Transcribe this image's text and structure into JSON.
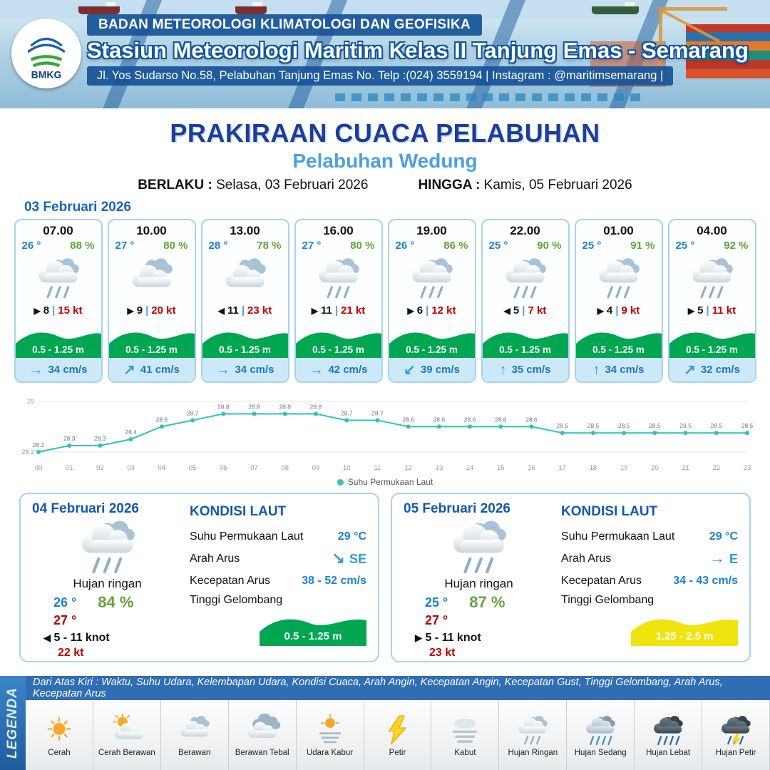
{
  "header": {
    "logo": "BMKG",
    "org_line": "BADAN METEOROLOGI KLIMATOLOGI DAN GEOFISIKA",
    "station_line": "Stasiun Meteorologi Maritim Kelas II Tanjung Emas - Semarang",
    "address_line": "Jl. Yos Sudarso No.58, Pelabuhan Tanjung Emas No. Telp :(024) 3559194 | Instagram : @maritimsemarang |"
  },
  "title": {
    "main": "PRAKIRAAN CUACA PELABUHAN",
    "port": "Pelabuhan Wedung",
    "valid_from_label": "BERLAKU :",
    "valid_from": "Selasa, 03 Februari 2026",
    "valid_to_label": "HINGGA :",
    "valid_to": "Kamis, 05 Februari 2026"
  },
  "colors": {
    "wave_green": "#00a651",
    "wave_yellow": "#f0e40e",
    "current_blue": "#2f9be0",
    "line_teal": "#2ec4b6"
  },
  "hourly": {
    "date": "03 Februari 2026",
    "sep": "|",
    "cards": [
      {
        "time": "07.00",
        "temp": "26 °",
        "humidity": "88 %",
        "icon": "hujan-ringan",
        "wind_arrow": "▶",
        "wind_speed": "8",
        "gust": "15 kt",
        "wave_height": "0.5 - 1.25 m",
        "current_arrow": "→",
        "current_speed": "34 cm/s"
      },
      {
        "time": "10.00",
        "temp": "27 °",
        "humidity": "80 %",
        "icon": "berawan",
        "wind_arrow": "▶",
        "wind_speed": "9",
        "gust": "20 kt",
        "wave_height": "0.5 - 1.25 m",
        "current_arrow": "↗",
        "current_speed": "41 cm/s"
      },
      {
        "time": "13.00",
        "temp": "28 °",
        "humidity": "78 %",
        "icon": "berawan",
        "wind_arrow": "◀",
        "wind_speed": "11",
        "gust": "23 kt",
        "wave_height": "0.5 - 1.25 m",
        "current_arrow": "→",
        "current_speed": "34 cm/s"
      },
      {
        "time": "16.00",
        "temp": "27 °",
        "humidity": "80 %",
        "icon": "hujan-ringan",
        "wind_arrow": "▶",
        "wind_speed": "11",
        "gust": "21 kt",
        "wave_height": "0.5 - 1.25 m",
        "current_arrow": "→",
        "current_speed": "42 cm/s"
      },
      {
        "time": "19.00",
        "temp": "26 °",
        "humidity": "86 %",
        "icon": "hujan-ringan",
        "wind_arrow": "▶",
        "wind_speed": "6",
        "gust": "12 kt",
        "wave_height": "0.5 - 1.25 m",
        "current_arrow": "↙",
        "current_speed": "39 cm/s"
      },
      {
        "time": "22.00",
        "temp": "25 °",
        "humidity": "90 %",
        "icon": "hujan-ringan",
        "wind_arrow": "◀",
        "wind_speed": "5",
        "gust": "7 kt",
        "wave_height": "0.5 - 1.25 m",
        "current_arrow": "↑",
        "current_speed": "35 cm/s"
      },
      {
        "time": "01.00",
        "temp": "25 °",
        "humidity": "91 %",
        "icon": "hujan-ringan",
        "wind_arrow": "▶",
        "wind_speed": "4",
        "gust": "9 kt",
        "wave_height": "0.5 - 1.25 m",
        "current_arrow": "↑",
        "current_speed": "34 cm/s"
      },
      {
        "time": "04.00",
        "temp": "25 °",
        "humidity": "92 %",
        "icon": "hujan-ringan",
        "wind_arrow": "▶",
        "wind_speed": "5",
        "gust": "11 kt",
        "wave_height": "0.5 - 1.25 m",
        "current_arrow": "↗",
        "current_speed": "32 cm/s"
      }
    ]
  },
  "chart_data": {
    "type": "line",
    "legend": "Suhu Permukaan Laut",
    "x": [
      "00",
      "01",
      "02",
      "03",
      "04",
      "05",
      "06",
      "07",
      "08",
      "09",
      "10",
      "11",
      "12",
      "13",
      "14",
      "15",
      "16",
      "17",
      "18",
      "19",
      "20",
      "21",
      "22",
      "23"
    ],
    "values": [
      28.2,
      28.3,
      28.3,
      28.4,
      28.6,
      28.7,
      28.8,
      28.8,
      28.8,
      28.8,
      28.7,
      28.7,
      28.6,
      28.6,
      28.6,
      28.6,
      28.6,
      28.5,
      28.5,
      28.5,
      28.5,
      28.5,
      28.5,
      28.5
    ],
    "ylim": [
      28.2,
      29
    ],
    "ymax_label": "29",
    "ymin_label": "28.2",
    "line_color": "#2ec4b6",
    "grid": true,
    "legend_position": "bottom"
  },
  "daily": [
    {
      "date": "04 Februari 2026",
      "condition": "Hujan ringan",
      "icon": "hujan-ringan",
      "temp_min": "26 °",
      "temp_max": "27 °",
      "humidity": "84 %",
      "wind_arrow": "◀",
      "wind_range": "5 - 11 knot",
      "gust": "22 kt",
      "sea": {
        "heading": "KONDISI LAUT",
        "sst_label": "Suhu Permukaan Laut",
        "sst": "29 °C",
        "current_dir_label": "Arah Arus",
        "current_dir_arrow": "↘",
        "current_dir": "SE",
        "current_speed_label": "Kecepatan Arus",
        "current_speed": "38 - 52 cm/s",
        "wave_label": "Tinggi Gelombang",
        "wave": "0.5 - 1.25 m",
        "wave_color": "#00a651"
      }
    },
    {
      "date": "05 Februari 2026",
      "condition": "Hujan ringan",
      "icon": "hujan-ringan",
      "temp_min": "25 °",
      "temp_max": "27 °",
      "humidity": "87 %",
      "wind_arrow": "▶",
      "wind_range": "5 - 11 knot",
      "gust": "23 kt",
      "sea": {
        "heading": "KONDISI LAUT",
        "sst_label": "Suhu Permukaan Laut",
        "sst": "29 °C",
        "current_dir_label": "Arah Arus",
        "current_dir_arrow": "→",
        "current_dir": "E",
        "current_speed_label": "Kecepatan Arus",
        "current_speed": "34 - 43 cm/s",
        "wave_label": "Tinggi Gelombang",
        "wave": "1.25 - 2.5 m",
        "wave_color": "#f0e40e"
      }
    }
  ],
  "legend": {
    "title": "LEGENDA",
    "description": "Dari Atas Kiri : Waktu, Suhu Udara, Kelembapan Udara, Kondisi Cuaca, Arah Angin, Kecepatan Angin, Kecepatan Gust, Tinggi Gelombang, Arah Arus, Kecepatan Arus",
    "items": [
      {
        "label": "Cerah",
        "icon": "cerah"
      },
      {
        "label": "Cerah Berawan",
        "icon": "cerah-berawan"
      },
      {
        "label": "Berawan",
        "icon": "berawan"
      },
      {
        "label": "Berawan Tebal",
        "icon": "berawan-tebal"
      },
      {
        "label": "Udara Kabur",
        "icon": "udara-kabur"
      },
      {
        "label": "Petir",
        "icon": "petir"
      },
      {
        "label": "Kabut",
        "icon": "kabut"
      },
      {
        "label": "Hujan Ringan",
        "icon": "hujan-ringan"
      },
      {
        "label": "Hujan Sedang",
        "icon": "hujan-sedang"
      },
      {
        "label": "Hujan Lebat",
        "icon": "hujan-lebat"
      },
      {
        "label": "Hujan Petir",
        "icon": "hujan-petir"
      }
    ]
  }
}
